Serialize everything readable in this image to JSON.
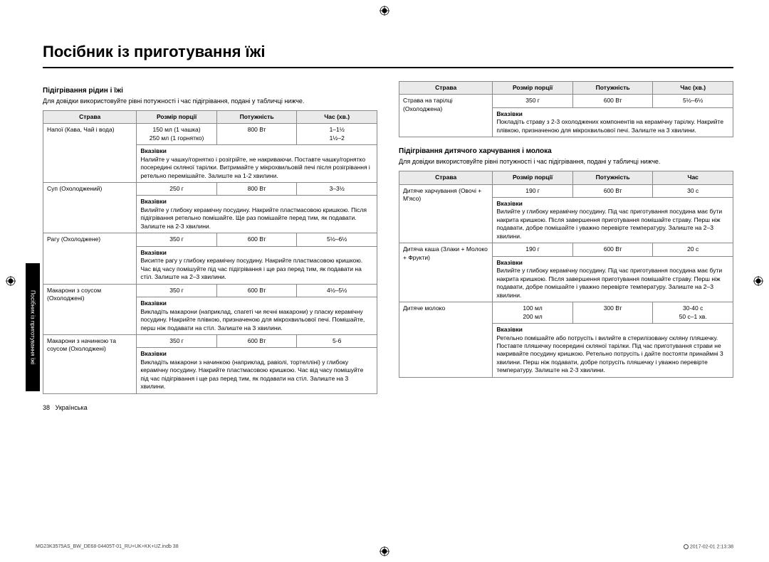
{
  "title": "Посібник із приготування їжі",
  "side_tab": "Посібник із приготування їжі",
  "page_footer": {
    "num": "38",
    "lang": "Українська"
  },
  "doc_footer": {
    "left": "MG23K3575AS_BW_DE68-04405T-01_RU+UK+KK+UZ.indb   38",
    "right": "2017-02-01      2:13:38"
  },
  "left": {
    "h2": "Підігрівання рідин і їжі",
    "intro": "Для довідки використовуйте рівні потужності і час підігрівання, подані у табличці нижче.",
    "headers": [
      "Страва",
      "Розмір порції",
      "Потужність",
      "Час (хв.)"
    ],
    "rows": [
      {
        "dish": "Напої (Кава, Чай і вода)",
        "size": "150 мл (1 чашка)\n250 мл (1 горнятко)",
        "power": "800 Вт",
        "time": "1–1½\n1½–2",
        "instr_label": "Вказівки",
        "instr": "Налийте у чашку/горнятко і розігрійте, не накриваючи. Поставте чашку/горнятко посередині скляної тарілки. Витримайте у мікрохвильовій печі після розігрівання і ретельно перемішайте. Залиште на 1-2 хвилини."
      },
      {
        "dish": "Суп (Охолоджений)",
        "size": "250 г",
        "power": "800 Вт",
        "time": "3–3½",
        "instr_label": "Вказівки",
        "instr": "Вилийте у глибоку керамічну посудину. Накрийте пластмасовою кришкою. Після підігрівання ретельно помішайте. Ще раз помішайте перед тим, як подавати. Залиште на 2-3 хвилини."
      },
      {
        "dish": "Рагу (Охолоджене)",
        "size": "350 г",
        "power": "600 Вт",
        "time": "5½–6½",
        "instr_label": "Вказівки",
        "instr": "Висипте рагу у глибоку керамічну посудину. Накрийте пластмасовою кришкою. Час від часу помішуйте під час підігрівання і ще раз перед тим, як подавати на стіл. Залиште на 2–3 хвилини."
      },
      {
        "dish": "Макарони з соусом (Охолоджені)",
        "size": "350 г",
        "power": "600 Вт",
        "time": "4½–5½",
        "instr_label": "Вказівки",
        "instr": "Викладіть макарони (наприклад, спагеті чи яєчні макарони) у пласку керамічну посудину. Накрийте плівкою, призначеною для мікрохвильової печі. Помішайте, перш ніж подавати на стіл. Залиште на 3 хвилини."
      },
      {
        "dish": "Макарони з начинкою та соусом (Охолоджені)",
        "size": "350 г",
        "power": "600 Вт",
        "time": "5-6",
        "instr_label": "Вказівки",
        "instr": "Викладіть макарони з начинкою (наприклад, равіолі, тортелліні) у глибоку керамічну посудину. Накрийте пластмасовою кришкою. Час від часу помішуйте під час підігрівання і ще раз перед тим, як подавати на стіл. Залиште на 3 хвилини."
      }
    ]
  },
  "right_top": {
    "headers": [
      "Страва",
      "Розмір порції",
      "Потужність",
      "Час (хв.)"
    ],
    "row": {
      "dish": "Страва на тарілці (Охолоджена)",
      "size": "350 г",
      "power": "600 Вт",
      "time": "5½–6½",
      "instr_label": "Вказівки",
      "instr": "Покладіть страву з 2-3 охолоджених компонентів на керамічну тарілку. Накрийте плівкою, призначеною для мікрохвильової печі. Залиште на 3 хвилини."
    }
  },
  "right_bottom": {
    "h2": "Підігрівання дитячого харчування і молока",
    "intro": "Для довідки використовуйте рівні потужності і час підігрівання, подані у табличці нижче.",
    "headers": [
      "Страва",
      "Розмір порції",
      "Потужність",
      "Час"
    ],
    "rows": [
      {
        "dish": "Дитяче харчування (Овочі + М'ясо)",
        "size": "190 г",
        "power": "600 Вт",
        "time": "30 с",
        "instr_label": "Вказівки",
        "instr": "Вилийте у глибоку керамічну посудину. Під час приготування посудина має бути накрита кришкою. Після завершення приготування помішайте страву. Перш ніж подавати, добре помішайте і уважно перевірте температуру. Залиште на 2–3 хвилини."
      },
      {
        "dish": "Дитяча каша (Злаки + Молоко + Фрукти)",
        "size": "190 г",
        "power": "600 Вт",
        "time": "20 с",
        "instr_label": "Вказівки",
        "instr": "Вилийте у глибоку керамічну посудину. Під час приготування посудина має бути накрита кришкою. Після завершення приготування помішайте страву. Перш ніж подавати, добре помішайте і уважно перевірте температуру. Залиште на 2–3 хвилини."
      },
      {
        "dish": "Дитяче молоко",
        "size": "100 мл\n200 мл",
        "power": "300 Вт",
        "time": "30-40 с\n50 с–1 хв.",
        "instr_label": "Вказівки",
        "instr": "Ретельно помішайте або потрусіть і вилийте в стерилізовану скляну пляшечку. Поставте пляшечку посередині скляної тарілки. Під час приготування страви не накривайте посудину кришкою. Ретельно потрусіть і дайте постояти принаймні 3 хвилини. Перш ніж подавати, добре потрусіть пляшечку і уважно перевірте температуру. Залиште на 2-3 хвилини."
      }
    ]
  }
}
